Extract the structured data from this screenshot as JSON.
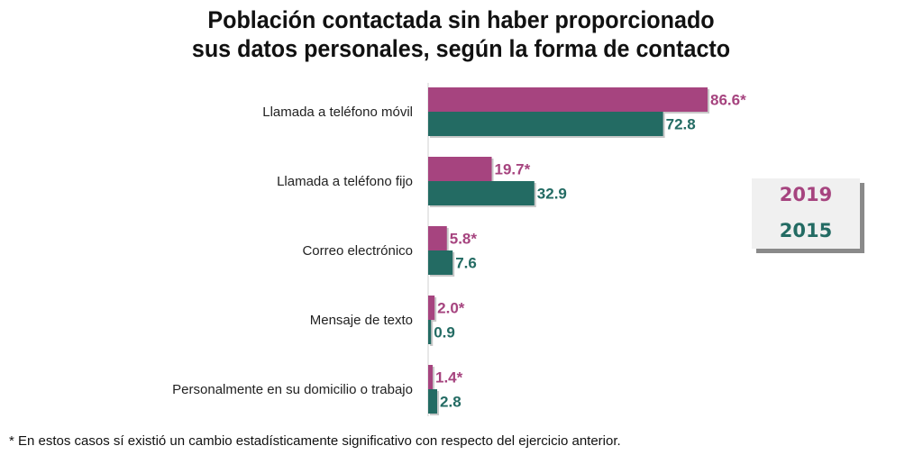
{
  "chart_data": {
    "type": "bar",
    "orientation": "horizontal",
    "title": "Población contactada sin haber proporcionado sus datos personales, según la forma de contacto",
    "title_lines": [
      "Población contactada sin haber proporcionado",
      "sus datos personales, según la forma de contacto"
    ],
    "categories": [
      "Llamada a teléfono móvil",
      "Llamada a teléfono fijo",
      "Correo electrónico",
      "Mensaje de texto",
      "Personalmente en su domicilio o trabajo"
    ],
    "series": [
      {
        "name": "2019",
        "color": "#a6447f",
        "values": [
          86.6,
          19.7,
          5.8,
          2.0,
          1.4
        ],
        "labels": [
          "86.6*",
          "19.7*",
          "5.8*",
          "2.0*",
          "1.4*"
        ]
      },
      {
        "name": "2015",
        "color": "#236b63",
        "values": [
          72.8,
          32.9,
          7.6,
          0.9,
          2.8
        ],
        "labels": [
          "72.8",
          "32.9",
          "7.6",
          "0.9",
          "2.8"
        ]
      }
    ],
    "xlabel": "",
    "ylabel": "",
    "xlim": [
      0,
      100
    ],
    "grid": false,
    "legend_position": "right"
  },
  "legend": {
    "items": [
      {
        "label": "2019",
        "color": "#a6447f"
      },
      {
        "label": "2015",
        "color": "#236b63"
      }
    ]
  },
  "footnote": "* En estos casos sí existió un cambio estadísticamente significativo con respecto del ejercicio anterior."
}
